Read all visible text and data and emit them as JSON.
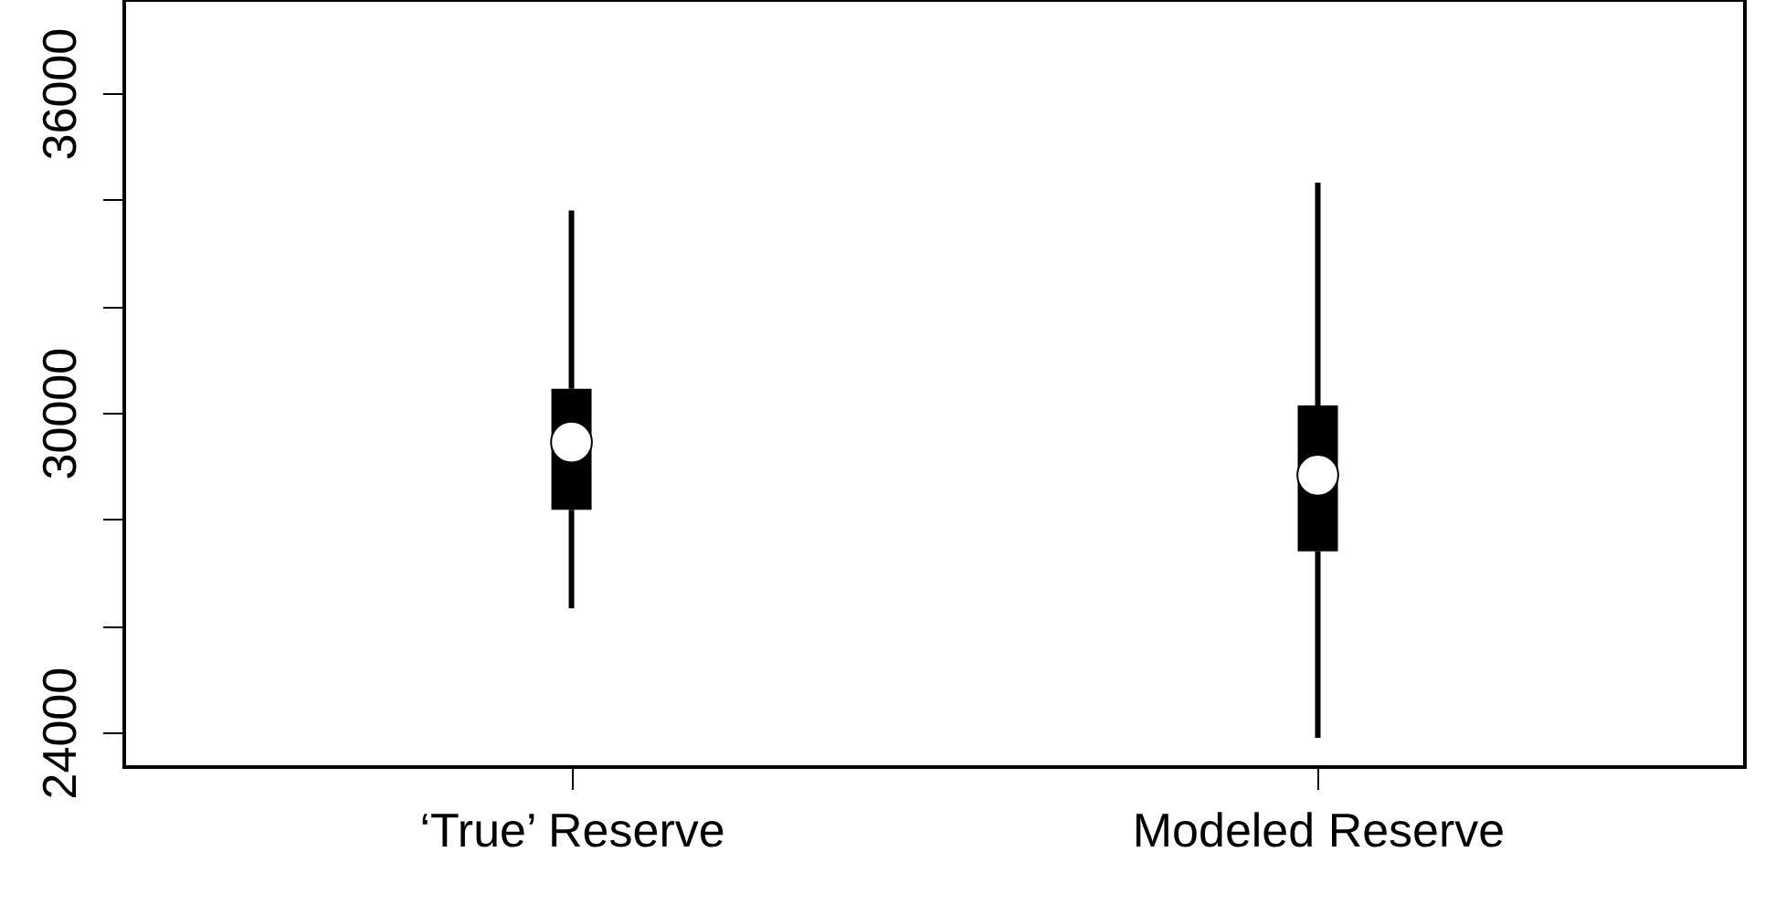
{
  "chart_data": {
    "type": "box",
    "categories": [
      "‘True’ Reserve",
      "Modeled Reserve"
    ],
    "boxes": [
      {
        "low": 26330,
        "q1": 28180,
        "median": 29450,
        "q3": 30450,
        "high": 33800
      },
      {
        "low": 23900,
        "q1": 27400,
        "median": 28830,
        "q3": 30140,
        "high": 34320
      }
    ],
    "ylim": [
      23350,
      37750
    ],
    "yticks": [
      24000,
      {
        "value": 26000,
        "label": null
      },
      {
        "value": 28000,
        "label": null
      },
      30000,
      {
        "value": 32000,
        "label": null
      },
      {
        "value": 34000,
        "label": null
      },
      36000
    ],
    "grid": false
  }
}
